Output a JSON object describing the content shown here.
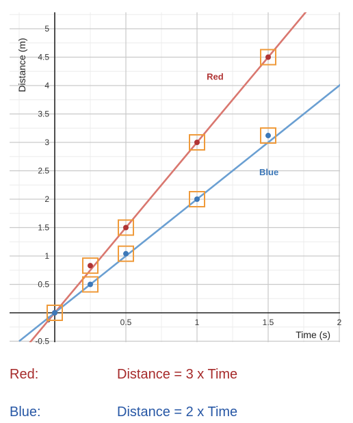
{
  "chart_data": {
    "type": "scatter",
    "xlabel": "Time (s)",
    "ylabel": "Distance (m)",
    "xlim": [
      -0.1,
      2.05
    ],
    "ylim": [
      -0.55,
      5.35
    ],
    "x_ticks": [
      0.5,
      1,
      1.5,
      2
    ],
    "x_tick_labels": [
      "0.5",
      "1",
      "1.5",
      "2"
    ],
    "y_ticks": [
      -0.5,
      0.5,
      1,
      1.5,
      2,
      2.5,
      3,
      3.5,
      4,
      4.5,
      5
    ],
    "y_tick_labels": [
      "-0.5",
      "0.5",
      "1",
      "1.5",
      "2",
      "2.5",
      "3",
      "3.5",
      "4",
      "4.5",
      "5"
    ],
    "origin_label": "0",
    "grid": true,
    "series": [
      {
        "name": "Red",
        "color": "#b03434",
        "line_color": "#d9776f",
        "slope": 3,
        "x": [
          0,
          0.25,
          0.5,
          1,
          1.5
        ],
        "y": [
          0,
          0.83,
          1.5,
          3.0,
          4.5
        ]
      },
      {
        "name": "Blue",
        "color": "#3d78b8",
        "line_color": "#6a9fd2",
        "slope": 2,
        "x": [
          0,
          0.25,
          0.5,
          1,
          1.5
        ],
        "y": [
          0,
          0.5,
          1.04,
          2.0,
          3.12
        ]
      }
    ],
    "highlight_color": "#ef9a3a"
  },
  "equations": [
    {
      "name": "Red:",
      "text": "Distance = 3 x Time",
      "color": "#a62a2a"
    },
    {
      "name": "Blue:",
      "text": "Distance = 2 x Time",
      "color": "#2757a5"
    }
  ]
}
